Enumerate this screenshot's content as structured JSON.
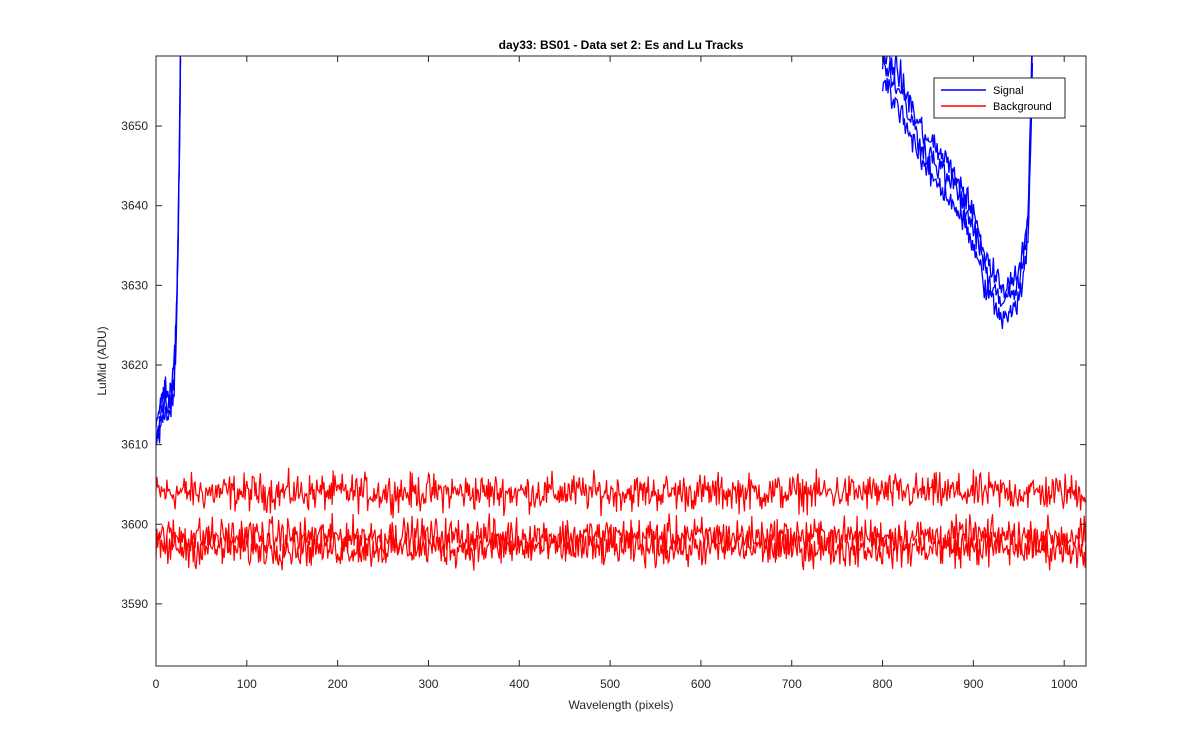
{
  "chart_data": {
    "type": "line",
    "title": "day33: BS01 - Data set 2: Es and Lu Tracks",
    "xlabel": "Wavelength (pixels)",
    "ylabel": "LuMid (ADU)",
    "xlim": [
      0,
      1024
    ],
    "ylim": [
      3582.2,
      3658.8
    ],
    "xticks": [
      0,
      100,
      200,
      300,
      400,
      500,
      600,
      700,
      800,
      900,
      1000
    ],
    "yticks": [
      3590,
      3600,
      3610,
      3620,
      3630,
      3640,
      3650
    ],
    "grid": false,
    "legend": {
      "location": "top-right",
      "entries": [
        "Signal",
        "Background"
      ]
    },
    "series": [
      {
        "name": "Signal",
        "color": "#0000ff",
        "note_visible": "three noisy traces; only parts within y-range are visible",
        "x": [
          0,
          5,
          10,
          15,
          20,
          22,
          24,
          26,
          27,
          800,
          820,
          840,
          860,
          880,
          900,
          910,
          920,
          930,
          940,
          950,
          955,
          960,
          962,
          965
        ],
        "y": [
          3612,
          3615,
          3617,
          3616,
          3620,
          3625,
          3635,
          3650,
          3660,
          3658,
          3654,
          3648,
          3645,
          3642,
          3637,
          3633,
          3630,
          3628,
          3628,
          3630,
          3633,
          3637,
          3645,
          3660
        ]
      },
      {
        "name": "Background",
        "color": "#ff0000",
        "note_visible": "three noisy traces with means near 3604, 3598.5 and 3597",
        "x": [
          0,
          100,
          200,
          300,
          400,
          500,
          600,
          700,
          800,
          900,
          1000,
          1024
        ],
        "y": [
          3604,
          3604,
          3604,
          3604,
          3604,
          3604,
          3604,
          3604,
          3604,
          3604,
          3604,
          3604
        ]
      }
    ]
  }
}
